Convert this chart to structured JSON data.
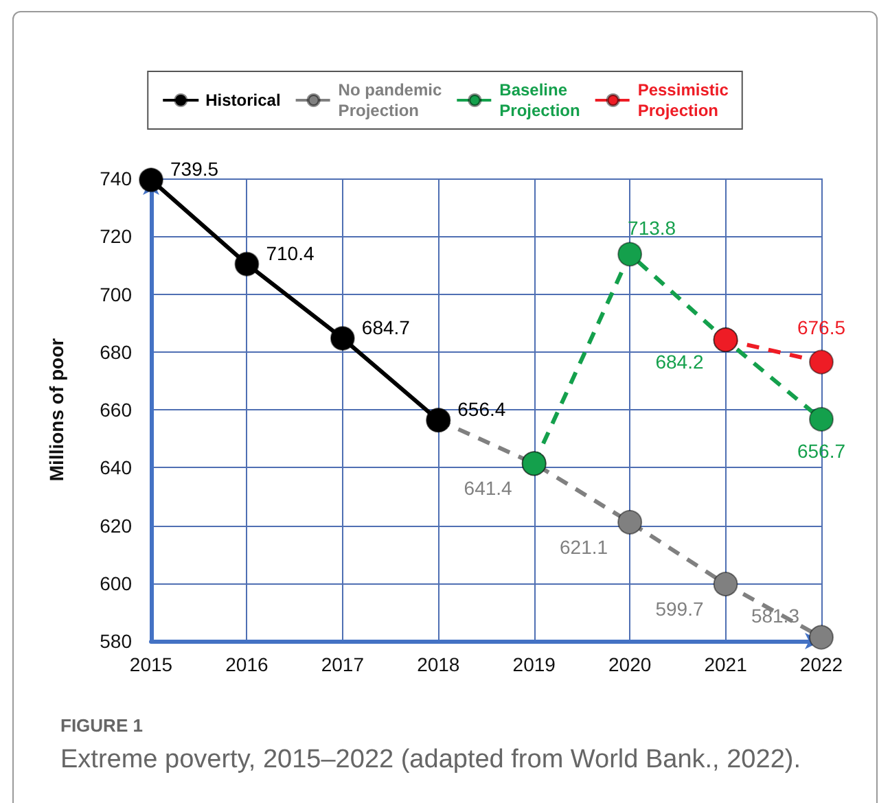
{
  "chart_data": {
    "type": "line",
    "annotations": [
      "FIGURE 1",
      "Extreme poverty, 2015–2022 (adapted from World Bank., 2022)."
    ],
    "ylabel": "Millions of poor",
    "xlim": [
      2015,
      2022
    ],
    "xticks": [
      2015,
      2016,
      2017,
      2018,
      2019,
      2020,
      2021,
      2022
    ],
    "ylim": [
      580,
      740
    ],
    "yticks": [
      580,
      600,
      620,
      640,
      660,
      680,
      700,
      720,
      740
    ],
    "grid": true,
    "legend": "top",
    "marker": "circle",
    "series": [
      {
        "name": "Historical",
        "color": "#000000",
        "line_style": "solid",
        "x": [
          2015,
          2016,
          2017,
          2018
        ],
        "values": [
          739.5,
          710.4,
          684.7,
          656.4
        ],
        "value_labels": [
          "739.5",
          "710.4",
          "684.7",
          "656.4"
        ]
      },
      {
        "name": "No pandemic Projection",
        "color": "#808080",
        "line_style": "dashed",
        "x": [
          2018,
          2019,
          2020,
          2021,
          2022
        ],
        "values": [
          656.4,
          641.4,
          621.1,
          599.7,
          581.3
        ],
        "value_labels": [
          null,
          "641.4",
          "621.1",
          "599.7",
          "581.3"
        ]
      },
      {
        "name": "Baseline Projection",
        "color": "#14a04c",
        "line_style": "dashed",
        "x": [
          2019,
          2020,
          2021,
          2022
        ],
        "values": [
          641.4,
          713.8,
          684.2,
          656.7
        ],
        "value_labels": [
          null,
          "713.8",
          "684.2",
          "656.7"
        ]
      },
      {
        "name": "Pessimistic Projection",
        "color": "#ee1c25",
        "line_style": "dashed",
        "x": [
          2021,
          2022
        ],
        "values": [
          684.2,
          676.5
        ],
        "value_labels": [
          null,
          "676.5"
        ]
      }
    ]
  }
}
